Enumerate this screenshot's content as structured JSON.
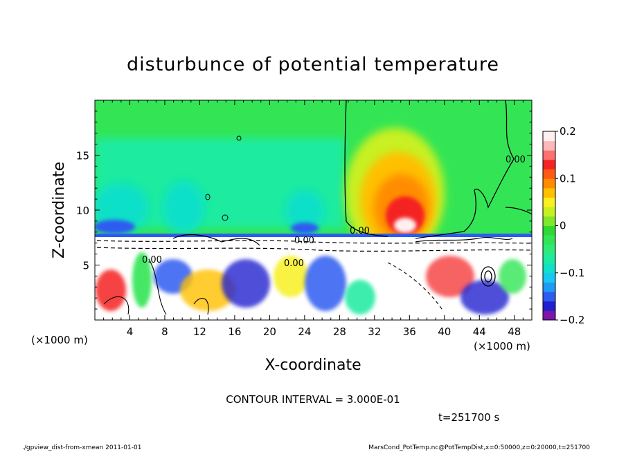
{
  "chart_data": {
    "type": "heatmap",
    "title": "disturbunce of potential temperature",
    "xlabel": "X-coordinate",
    "ylabel": "Z-coordinate",
    "x_unit": "(×1000 m)",
    "y_unit": "(×1000 m)",
    "xlim": [
      0,
      50
    ],
    "ylim": [
      0,
      20
    ],
    "x_ticks": [
      "4",
      "8",
      "12",
      "16",
      "20",
      "24",
      "28",
      "32",
      "36",
      "40",
      "44",
      "48"
    ],
    "x_tick_values": [
      4,
      8,
      12,
      16,
      20,
      24,
      28,
      32,
      36,
      40,
      44,
      48
    ],
    "y_ticks": [
      "5",
      "10",
      "15"
    ],
    "y_tick_values": [
      5,
      10,
      15
    ],
    "colorbar": {
      "vmin": -0.2,
      "vmax": 0.2,
      "labels": [
        "0.2",
        "0.1",
        "0",
        "−0.1",
        "−0.2"
      ],
      "label_values": [
        0.2,
        0.1,
        0,
        -0.1,
        -0.2
      ],
      "colors": [
        "#7B16A8",
        "#2020D0",
        "#2E5CF0",
        "#1F9AF5",
        "#18C8F0",
        "#10E0C8",
        "#1EEBA0",
        "#2FEA7A",
        "#33E555",
        "#2ED934",
        "#7FE82A",
        "#C8F020",
        "#F8F020",
        "#FFC000",
        "#FF8C00",
        "#FF5A14",
        "#F52323",
        "#FF7070",
        "#FFB8B8",
        "#FFF0F0"
      ]
    },
    "contour_interval": "CONTOUR INTERVAL = 3.000E-01",
    "contour_labels": [
      "0.00",
      "0.00",
      "0.00",
      "0.00",
      "0.00"
    ],
    "time": "t=251700 s",
    "grid": false
  },
  "footer": {
    "left": "./gpview_dist-from-xmean  2011-01-01",
    "right": "MarsCond_PotTemp.nc@PotTempDist,x=0:50000,z=0:20000,t=251700"
  },
  "colors": {
    "background_field": "#33E555",
    "boundary_layer": "#FFFFFF",
    "contour_line": "#000000"
  }
}
